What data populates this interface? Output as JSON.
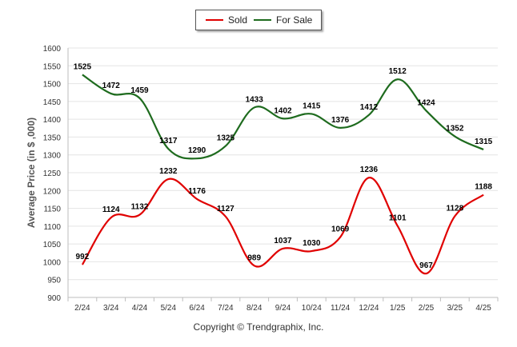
{
  "chart_data": {
    "type": "line",
    "categories": [
      "2/24",
      "3/24",
      "4/24",
      "5/24",
      "6/24",
      "7/24",
      "8/24",
      "9/24",
      "10/24",
      "11/24",
      "12/24",
      "1/25",
      "2/25",
      "3/25",
      "4/25"
    ],
    "series": [
      {
        "name": "Sold",
        "color": "#e00000",
        "values": [
          992,
          1124,
          1132,
          1232,
          1176,
          1127,
          989,
          1037,
          1030,
          1069,
          1236,
          1101,
          967,
          1128,
          1188
        ]
      },
      {
        "name": "For Sale",
        "color": "#1e6b1e",
        "values": [
          1525,
          1472,
          1459,
          1317,
          1290,
          1325,
          1433,
          1402,
          1415,
          1376,
          1412,
          1512,
          1424,
          1352,
          1315
        ]
      }
    ],
    "ylabel": "Average Price (in $ ,000)",
    "ylim": [
      900,
      1600
    ],
    "yticks": [
      900,
      950,
      1000,
      1050,
      1100,
      1150,
      1200,
      1250,
      1300,
      1350,
      1400,
      1450,
      1500,
      1550,
      1600
    ],
    "grid": true,
    "legend": "top-center"
  },
  "legend": {
    "sold": "Sold",
    "for_sale": "For Sale"
  },
  "footer": "Copyright © Trendgraphix, Inc."
}
